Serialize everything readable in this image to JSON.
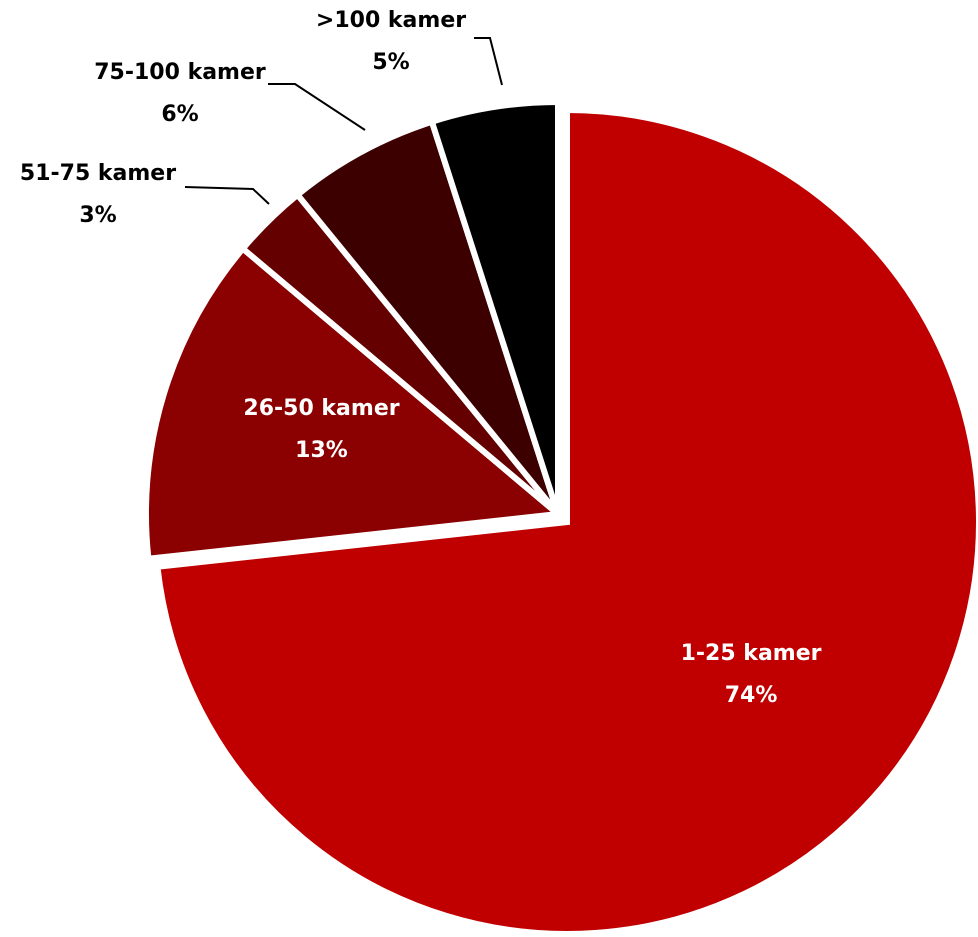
{
  "chart_data": {
    "type": "pie",
    "title": "",
    "slices": [
      {
        "label": "1-25 kamer",
        "pct_label": "74%",
        "value": 74,
        "color": "#C00000",
        "label_color": "#FFFFFF"
      },
      {
        "label": "26-50 kamer",
        "pct_label": "13%",
        "value": 13,
        "color": "#8B0000",
        "label_color": "#FFFFFF"
      },
      {
        "label": "51-75 kamer",
        "pct_label": "3%",
        "value": 3,
        "color": "#640000",
        "label_color": "#000000"
      },
      {
        "label": "75-100 kamer",
        "pct_label": "6%",
        "value": 6,
        "color": "#3D0000",
        "label_color": "#000000"
      },
      {
        "label": ">100 kamer",
        "pct_label": "5%",
        "value": 5,
        "color": "#000000",
        "label_color": "#000000"
      }
    ],
    "start_angle": "12 o'clock, clockwise",
    "exploded": true,
    "legend": "none"
  }
}
